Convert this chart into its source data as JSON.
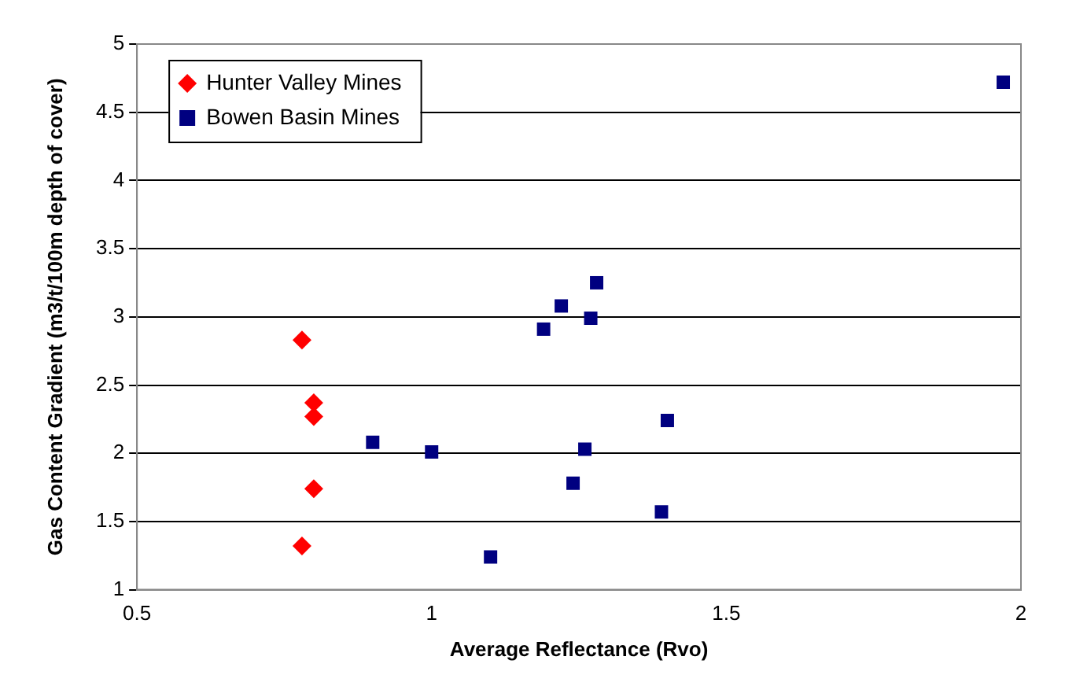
{
  "chart_data": {
    "type": "scatter",
    "xlabel": "Average Reflectance (Rvo)",
    "ylabel": "Gas Content Gradient (m3/t/100m depth of cover)",
    "xlim": [
      0.5,
      2
    ],
    "xticks": [
      0.5,
      1,
      1.5,
      2
    ],
    "ylim": [
      1,
      5
    ],
    "yticks": [
      1,
      1.5,
      2,
      2.5,
      3,
      3.5,
      4,
      4.5,
      5
    ],
    "grid": "y",
    "legend": "top left",
    "series": [
      {
        "name": "Hunter Valley Mines",
        "color": "#ff0000",
        "marker": "diamond",
        "x": [
          0.78,
          0.8,
          0.8,
          0.8,
          0.78
        ],
        "values": [
          2.83,
          2.37,
          2.27,
          1.74,
          1.32
        ]
      },
      {
        "name": "Bowen Basin Mines",
        "color": "#000080",
        "marker": "square",
        "x": [
          0.9,
          1.0,
          1.1,
          1.19,
          1.22,
          1.27,
          1.28,
          1.26,
          1.24,
          1.4,
          1.39,
          1.97
        ],
        "values": [
          2.08,
          2.01,
          1.24,
          2.91,
          3.08,
          2.99,
          3.25,
          2.03,
          1.78,
          2.24,
          1.57,
          4.72
        ]
      }
    ]
  }
}
